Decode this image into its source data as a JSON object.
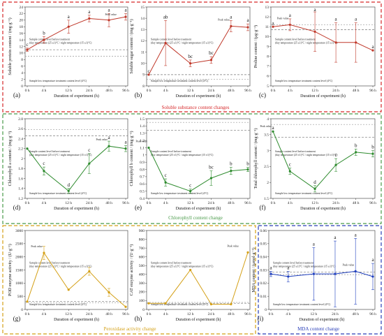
{
  "x_labels": [
    "0 h",
    "4 h",
    "12 h",
    "24 h",
    "48 h",
    "96 h"
  ],
  "xlabel": "Duration of experiment (h)",
  "annotations": {
    "peak": "Peak value",
    "before": "Sample content level before treatment",
    "temp": "(day temperature (25 ±1)°C / night temperature (15 ±1)°C)",
    "low": "Sample low temperature treatment content level (4°C)"
  },
  "groups": [
    {
      "caption": "Soluble substance content changes",
      "color": "#d62728"
    },
    {
      "caption": "Chlorophyll content change",
      "color": "#4a9b4a"
    },
    {
      "caption": "Peroxidase activity change",
      "color": "#d4a017"
    },
    {
      "caption": "MDA content change",
      "color": "#2a3fb8"
    }
  ],
  "chart_data": [
    {
      "type": "line",
      "panel": "(a)",
      "ylabel": "Soluble protein content / (mg·g⁻¹)",
      "color": "#c0392b",
      "ylim": [
        0,
        24
      ],
      "yticks": [
        0,
        2,
        4,
        6,
        8,
        10,
        12,
        14,
        16,
        18,
        20,
        22,
        24
      ],
      "x": [
        "0 h",
        "4 h",
        "12 h",
        "24 h",
        "48 h",
        "96 h"
      ],
      "values": [
        11,
        14,
        18,
        20.5,
        20,
        21
      ],
      "errors": [
        0.5,
        1,
        2,
        1,
        2,
        1
      ],
      "letters": [
        "c",
        "b",
        "a",
        "a",
        "a",
        "a"
      ],
      "before_level": 11,
      "low_level": 9
    },
    {
      "type": "line",
      "panel": "(b)",
      "ylabel": "Soluble sugar content / (mg·g⁻¹)",
      "color": "#c0392b",
      "ylim": [
        8,
        15
      ],
      "yticks": [
        8,
        9,
        10,
        11,
        12,
        13,
        14,
        15
      ],
      "x": [
        "0 h",
        "4 h",
        "12 h",
        "24 h",
        "48 h",
        "96 h"
      ],
      "values": [
        9,
        11.8,
        10,
        10.3,
        13.3,
        13.2
      ],
      "errors": [
        0,
        2,
        0.3,
        0.3,
        0.5,
        0.3
      ],
      "letters": [
        "c",
        "ab",
        "bc",
        "bc",
        "a",
        "a"
      ],
      "before_level": 9.0,
      "low_level": 8.6
    },
    {
      "type": "line",
      "panel": "(c)",
      "ylabel": "Proline content / (μg·g⁻¹)",
      "color": "#c0392b",
      "ylim": [
        5,
        13
      ],
      "yticks": [
        5,
        6,
        7,
        8,
        9,
        10,
        11,
        12,
        13
      ],
      "x": [
        "0 h",
        "4 h",
        "12 h",
        "24 h",
        "48 h",
        "96 h"
      ],
      "values": [
        11,
        11.2,
        10.5,
        9.4,
        9.4,
        8.6
      ],
      "errors": [
        0,
        0.6,
        2,
        2,
        2,
        0
      ],
      "letters": [
        "a",
        "a",
        "a",
        "a",
        "a",
        "a"
      ],
      "before_level": 10.7,
      "low_level": 11.2
    },
    {
      "type": "line",
      "panel": "(d)",
      "ylabel": "Chlorophyll a content / (mg·g⁻¹)",
      "color": "#2e8b2e",
      "ylim": [
        1.2,
        2.8
      ],
      "yticks": [
        1.2,
        1.4,
        1.6,
        1.8,
        2.0,
        2.2,
        2.4,
        2.6,
        2.8
      ],
      "x": [
        "0 h",
        "4 h",
        "12 h",
        "24 h",
        "48 h",
        "96 h"
      ],
      "values": [
        2.2,
        1.75,
        1.35,
        1.9,
        2.25,
        2.2
      ],
      "errors": [
        0,
        0.08,
        0.05,
        0.2,
        0.1,
        0.06
      ],
      "letters": [
        "",
        "c",
        "d",
        "c",
        "a",
        "a"
      ],
      "before_level": 2.46,
      "low_level": 2.58
    },
    {
      "type": "line",
      "panel": "(e)",
      "ylabel": "Chlorophyll b content / (mg·g⁻¹)",
      "color": "#2e8b2e",
      "ylim": [
        0.4,
        1.5
      ],
      "yticks": [
        0.4,
        0.5,
        0.6,
        0.7,
        0.8,
        0.9,
        1.0,
        1.1,
        1.2,
        1.3,
        1.4,
        1.5
      ],
      "x": [
        "0 h",
        "4 h",
        "12 h",
        "24 h",
        "48 h",
        "96 h"
      ],
      "values": [
        1.1,
        0.62,
        0.5,
        0.68,
        0.78,
        0.8
      ],
      "errors": [
        0,
        0.05,
        0.03,
        0.1,
        0.05,
        0.03
      ],
      "letters": [
        "",
        "c",
        "c",
        "bc",
        "b",
        "b"
      ],
      "before_level": 1.34,
      "low_level": 1.45
    },
    {
      "type": "line",
      "panel": "(f)",
      "ylabel": "Total chlorophyll content / (mg·g⁻¹)",
      "color": "#2e8b2e",
      "ylim": [
        1.5,
        4.0
      ],
      "yticks": [
        1.5,
        2.0,
        2.5,
        3.0,
        3.5,
        4.0
      ],
      "x": [
        "0 h",
        "4 h",
        "12 h",
        "24 h",
        "48 h",
        "96 h"
      ],
      "values": [
        3.6,
        2.35,
        1.8,
        2.55,
        2.95,
        2.9
      ],
      "errors": [
        0,
        0.1,
        0.1,
        0.2,
        0.1,
        0.1
      ],
      "letters": [
        "a",
        "c",
        "d",
        "c",
        "b",
        "b"
      ],
      "before_level": 3.42,
      "low_level": 3.82
    },
    {
      "type": "line",
      "panel": "(g)",
      "ylabel": "POD enzyme activity / (U·g⁻¹)",
      "color": "#d4a017",
      "ylim": [
        0,
        3000
      ],
      "yticks": [
        0,
        500,
        1000,
        1500,
        2000,
        2500,
        3000
      ],
      "x": [
        "0 h",
        "4 h",
        "12 h",
        "24 h",
        "48 h",
        "96 h"
      ],
      "values": [
        300,
        2150,
        750,
        1450,
        650,
        100
      ],
      "errors": [
        0,
        250,
        0,
        150,
        150,
        0
      ],
      "letters": [
        "",
        "",
        "",
        "",
        "",
        ""
      ],
      "before_level": 300,
      "low_level": 250
    },
    {
      "type": "line",
      "panel": "(h)",
      "ylabel": "CAT enzyme activity / (U·g⁻¹)",
      "color": "#d4a017",
      "ylim": [
        0,
        900
      ],
      "yticks": [
        0,
        100,
        200,
        300,
        400,
        500,
        600,
        700,
        800,
        900
      ],
      "x": [
        "0 h",
        "4 h",
        "12 h",
        "24 h",
        "48 h",
        "96 h"
      ],
      "values": [
        70,
        70,
        450,
        60,
        60,
        650
      ],
      "errors": [
        0,
        0,
        0,
        0,
        0,
        0
      ],
      "letters": [
        "",
        "",
        "",
        "",
        "",
        ""
      ],
      "before_level": 70,
      "low_level": 80
    },
    {
      "type": "line",
      "panel": "(i)",
      "ylabel": "MDA content / (μmol·g⁻¹)",
      "color": "#1f3fbf",
      "ylim": [
        0,
        0.06
      ],
      "yticks": [
        0,
        0.01,
        0.02,
        0.03,
        0.04,
        0.05,
        0.06
      ],
      "x": [
        "0 h",
        "4 h",
        "12 h",
        "24 h",
        "48 h",
        "96 h"
      ],
      "values": [
        0.027,
        0.025,
        0.027,
        0.027,
        0.029,
        0.025
      ],
      "errors": [
        0.002,
        0.004,
        0.02,
        0.025,
        0.025,
        0.01
      ],
      "letters": [
        "a",
        "a",
        "a",
        "a",
        "a",
        "a"
      ],
      "before_level": 0.0285,
      "low_level": 0.0265
    }
  ]
}
